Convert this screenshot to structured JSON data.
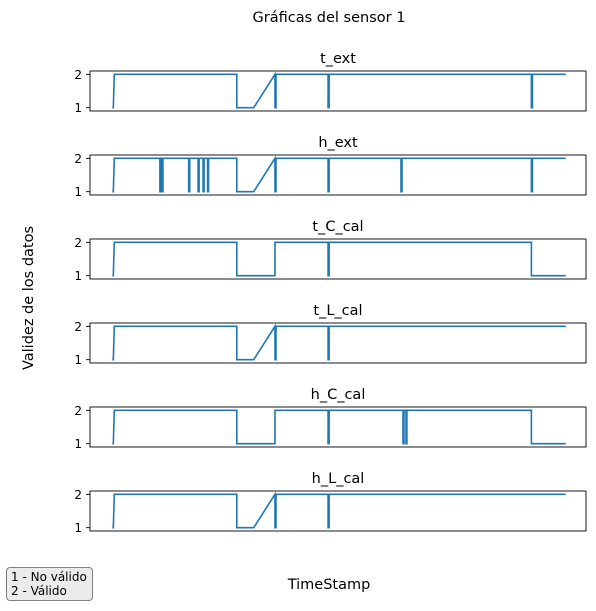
{
  "figure": {
    "suptitle": "Gráficas del sensor 1",
    "ylabel": "Validez de los datos",
    "xlabel": "TimeStamp",
    "note": [
      "1 - No válido",
      "2 - Válido"
    ],
    "line_color": "#1f77b4"
  },
  "chart_data": [
    {
      "type": "line",
      "title": "t_ext",
      "yticks": [
        1,
        2
      ],
      "ylim": [
        0.9,
        2.1
      ],
      "xlim": [
        0,
        1
      ],
      "x": [
        0.045,
        0.047,
        0.049,
        0.296,
        0.296,
        0.33,
        0.373,
        0.373,
        0.375,
        0.375,
        0.48,
        0.48,
        0.482,
        0.482,
        0.89,
        0.89,
        0.892,
        0.892,
        0.959
      ],
      "values": [
        1,
        1,
        2,
        2,
        1,
        1,
        2,
        1,
        1,
        2,
        2,
        1,
        1,
        2,
        2,
        1,
        1,
        2,
        2
      ]
    },
    {
      "type": "line",
      "title": "h_ext",
      "yticks": [
        1,
        2
      ],
      "ylim": [
        0.9,
        2.1
      ],
      "xlim": [
        0,
        1
      ],
      "x": [
        0.045,
        0.047,
        0.049,
        0.141,
        0.141,
        0.143,
        0.143,
        0.145,
        0.145,
        0.147,
        0.147,
        0.199,
        0.199,
        0.201,
        0.201,
        0.218,
        0.218,
        0.22,
        0.22,
        0.228,
        0.228,
        0.23,
        0.23,
        0.237,
        0.237,
        0.239,
        0.239,
        0.296,
        0.296,
        0.33,
        0.373,
        0.373,
        0.375,
        0.375,
        0.48,
        0.48,
        0.482,
        0.482,
        0.627,
        0.627,
        0.629,
        0.629,
        0.89,
        0.89,
        0.892,
        0.892,
        0.959
      ],
      "values": [
        1,
        1,
        2,
        2,
        1,
        1,
        2,
        2,
        1,
        1,
        2,
        2,
        1,
        1,
        2,
        2,
        1,
        1,
        2,
        2,
        1,
        1,
        2,
        2,
        1,
        1,
        2,
        2,
        1,
        1,
        2,
        1,
        1,
        2,
        2,
        1,
        1,
        2,
        2,
        1,
        1,
        2,
        2,
        1,
        1,
        2,
        2
      ]
    },
    {
      "type": "line",
      "title": "t_C_cal",
      "yticks": [
        1,
        2
      ],
      "ylim": [
        0.9,
        2.1
      ],
      "xlim": [
        0,
        1
      ],
      "x": [
        0.045,
        0.047,
        0.049,
        0.296,
        0.296,
        0.373,
        0.373,
        0.48,
        0.48,
        0.482,
        0.482,
        0.89,
        0.89,
        0.959
      ],
      "values": [
        1,
        1,
        2,
        2,
        1,
        1,
        2,
        2,
        1,
        1,
        2,
        2,
        1,
        1
      ]
    },
    {
      "type": "line",
      "title": "t_L_cal",
      "yticks": [
        1,
        2
      ],
      "ylim": [
        0.9,
        2.1
      ],
      "xlim": [
        0,
        1
      ],
      "x": [
        0.045,
        0.047,
        0.049,
        0.296,
        0.296,
        0.33,
        0.373,
        0.373,
        0.375,
        0.375,
        0.48,
        0.48,
        0.482,
        0.482,
        0.959
      ],
      "values": [
        1,
        1,
        2,
        2,
        1,
        1,
        2,
        1,
        1,
        2,
        2,
        1,
        1,
        2,
        2
      ]
    },
    {
      "type": "line",
      "title": "h_C_cal",
      "yticks": [
        1,
        2
      ],
      "ylim": [
        0.9,
        2.1
      ],
      "xlim": [
        0,
        1
      ],
      "x": [
        0.045,
        0.047,
        0.049,
        0.296,
        0.296,
        0.373,
        0.373,
        0.48,
        0.48,
        0.482,
        0.482,
        0.631,
        0.631,
        0.633,
        0.633,
        0.637,
        0.637,
        0.639,
        0.639,
        0.89,
        0.89,
        0.959
      ],
      "values": [
        1,
        1,
        2,
        2,
        1,
        1,
        2,
        2,
        1,
        1,
        2,
        2,
        1,
        1,
        2,
        2,
        1,
        1,
        2,
        2,
        1,
        1
      ]
    },
    {
      "type": "line",
      "title": "h_L_cal",
      "yticks": [
        1,
        2
      ],
      "ylim": [
        0.9,
        2.1
      ],
      "xlim": [
        0,
        1
      ],
      "x": [
        0.045,
        0.047,
        0.049,
        0.296,
        0.296,
        0.33,
        0.373,
        0.373,
        0.375,
        0.375,
        0.48,
        0.48,
        0.482,
        0.482,
        0.959
      ],
      "values": [
        1,
        1,
        2,
        2,
        1,
        1,
        2,
        1,
        1,
        2,
        2,
        1,
        1,
        2,
        2
      ]
    }
  ]
}
